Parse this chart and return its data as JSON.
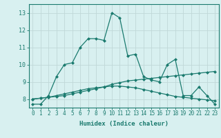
{
  "x": [
    0,
    1,
    2,
    3,
    4,
    5,
    6,
    7,
    8,
    9,
    10,
    11,
    12,
    13,
    14,
    15,
    16,
    17,
    18,
    19,
    20,
    21,
    22,
    23
  ],
  "line1": [
    7.7,
    7.7,
    8.2,
    9.3,
    10.0,
    10.1,
    11.0,
    11.5,
    11.5,
    11.4,
    13.0,
    12.7,
    10.5,
    10.6,
    9.3,
    9.1,
    9.0,
    10.0,
    10.3,
    8.2,
    8.2,
    8.7,
    8.2,
    7.7
  ],
  "line2": [
    8.0,
    8.05,
    8.1,
    8.2,
    8.3,
    8.4,
    8.5,
    8.6,
    8.65,
    8.7,
    8.75,
    8.75,
    8.7,
    8.65,
    8.55,
    8.45,
    8.35,
    8.25,
    8.15,
    8.1,
    8.05,
    8.0,
    7.95,
    7.9
  ],
  "line3": [
    8.0,
    8.05,
    8.1,
    8.15,
    8.2,
    8.3,
    8.4,
    8.5,
    8.6,
    8.7,
    8.85,
    8.95,
    9.05,
    9.1,
    9.15,
    9.2,
    9.25,
    9.3,
    9.35,
    9.4,
    9.45,
    9.5,
    9.55,
    9.6
  ],
  "line_color": "#1a7a6e",
  "bg_color": "#d8f0f0",
  "grid_major_color": "#c0d8d8",
  "grid_minor_color": "#d0e8e8",
  "axis_color": "#1a7a6e",
  "xlabel": "Humidex (Indice chaleur)",
  "ylim": [
    7.5,
    13.5
  ],
  "xlim": [
    -0.5,
    23.5
  ],
  "yticks": [
    8,
    9,
    10,
    11,
    12,
    13
  ],
  "xticks": [
    0,
    1,
    2,
    3,
    4,
    5,
    6,
    7,
    8,
    9,
    10,
    11,
    12,
    13,
    14,
    15,
    16,
    17,
    18,
    19,
    20,
    21,
    22,
    23
  ],
  "marker_size": 2.5,
  "line_width": 0.9,
  "xlabel_fontsize": 6.5,
  "tick_fontsize": 5.5,
  "ytick_fontsize": 6.0
}
